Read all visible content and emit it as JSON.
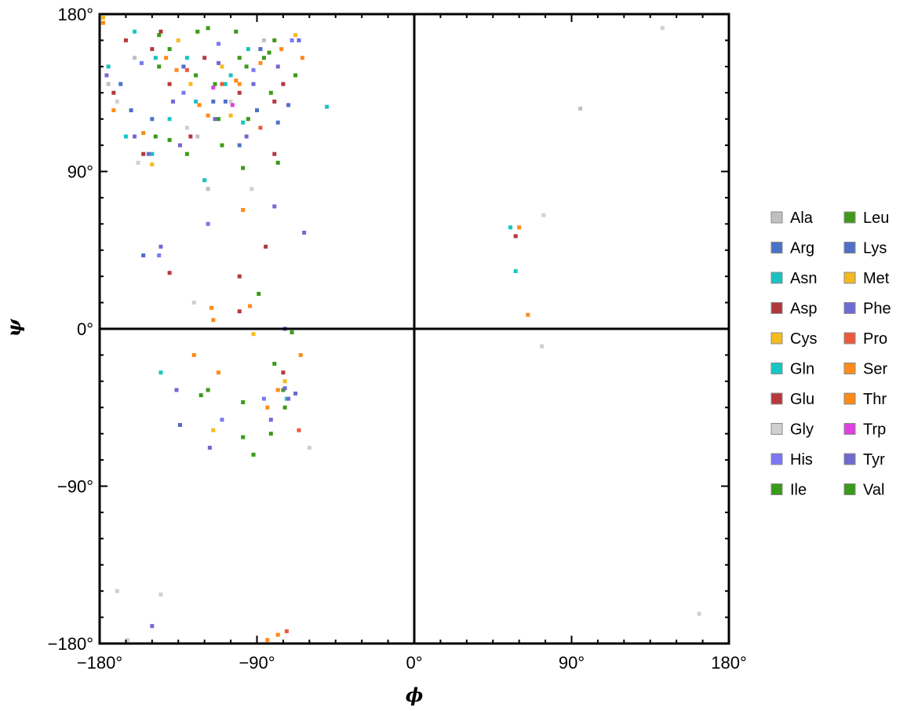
{
  "chart_data": {
    "type": "scatter",
    "xlabel": "ϕ",
    "ylabel": "ψ",
    "xlim": [
      -180,
      180
    ],
    "ylim": [
      -180,
      180
    ],
    "xticks": [
      {
        "value": -180,
        "label": "−180°"
      },
      {
        "value": -90,
        "label": "−90°"
      },
      {
        "value": 0,
        "label": "0°"
      },
      {
        "value": 90,
        "label": "90°"
      },
      {
        "value": 180,
        "label": "180°"
      }
    ],
    "yticks": [
      {
        "value": 180,
        "label": "180°"
      },
      {
        "value": 90,
        "label": "90°"
      },
      {
        "value": 0,
        "label": "0°"
      },
      {
        "value": -90,
        "label": "−90°"
      },
      {
        "value": -180,
        "label": "−180°"
      }
    ],
    "grid": false,
    "zero_lines": true,
    "legend_position": "right",
    "series": [
      {
        "name": "Ala",
        "color": "#c0c0c0",
        "points": [
          [
            -86,
            165
          ],
          [
            95,
            126
          ],
          [
            -118,
            80
          ],
          [
            -160,
            155
          ],
          [
            -175,
            140
          ],
          [
            -124,
            110
          ]
        ]
      },
      {
        "name": "Arg",
        "color": "#4a73c8",
        "points": [
          [
            -168,
            140
          ],
          [
            -150,
            120
          ],
          [
            -115,
            130
          ],
          [
            -100,
            105
          ],
          [
            -90,
            125
          ],
          [
            -78,
            118
          ]
        ]
      },
      {
        "name": "Asn",
        "color": "#19c2c0",
        "points": [
          [
            -175,
            150
          ],
          [
            -148,
            155
          ],
          [
            -125,
            130
          ],
          [
            -105,
            145
          ],
          [
            -95,
            160
          ],
          [
            -50,
            127
          ],
          [
            -150,
            100
          ],
          [
            -120,
            85
          ]
        ]
      },
      {
        "name": "Asp",
        "color": "#b0383c",
        "points": [
          [
            -172,
            135
          ],
          [
            -145,
            170
          ],
          [
            -128,
            110
          ],
          [
            -100,
            30
          ],
          [
            -85,
            47
          ],
          [
            -155,
            100
          ],
          [
            -80,
            100
          ],
          [
            -75,
            140
          ]
        ]
      },
      {
        "name": "Cys",
        "color": "#f5bc1c",
        "points": [
          [
            -135,
            165
          ],
          [
            -110,
            150
          ],
          [
            -92,
            -3
          ],
          [
            -115,
            -58
          ]
        ]
      },
      {
        "name": "Gln",
        "color": "#14c8c4",
        "points": [
          [
            -160,
            170
          ],
          [
            -130,
            155
          ],
          [
            -108,
            140
          ],
          [
            -98,
            118
          ],
          [
            -165,
            110
          ],
          [
            -140,
            120
          ],
          [
            -145,
            -25
          ],
          [
            -73,
            -40
          ],
          [
            55,
            58
          ],
          [
            58,
            33
          ]
        ]
      },
      {
        "name": "Glu",
        "color": "#b8383c",
        "points": [
          [
            -165,
            165
          ],
          [
            -150,
            160
          ],
          [
            -140,
            140
          ],
          [
            -120,
            155
          ],
          [
            -100,
            135
          ],
          [
            -80,
            130
          ],
          [
            -140,
            32
          ],
          [
            -100,
            10
          ],
          [
            -75,
            -25
          ],
          [
            58,
            53
          ]
        ]
      },
      {
        "name": "Gly",
        "color": "#d0d0d0",
        "points": [
          [
            -170,
            130
          ],
          [
            -158,
            95
          ],
          [
            -130,
            115
          ],
          [
            -105,
            130
          ],
          [
            -70,
            165
          ],
          [
            -60,
            -68
          ],
          [
            -170,
            -150
          ],
          [
            -145,
            -152
          ],
          [
            -164,
            -178
          ],
          [
            -126,
            15
          ],
          [
            73,
            -10
          ],
          [
            163,
            -163
          ],
          [
            142,
            172
          ],
          [
            74,
            65
          ],
          [
            -93,
            80
          ]
        ]
      },
      {
        "name": "His",
        "color": "#7a78f2",
        "points": [
          [
            -156,
            152
          ],
          [
            -132,
            135
          ],
          [
            -112,
            163
          ],
          [
            -92,
            148
          ],
          [
            -70,
            165
          ],
          [
            -146,
            42
          ],
          [
            -118,
            60
          ],
          [
            -110,
            -52
          ],
          [
            -86,
            -40
          ]
        ]
      },
      {
        "name": "Ile",
        "color": "#3a9a1a",
        "points": [
          [
            -146,
            168
          ],
          [
            -125,
            145
          ],
          [
            -102,
            170
          ],
          [
            -86,
            155
          ],
          [
            -78,
            95
          ],
          [
            -148,
            110
          ],
          [
            -110,
            105
          ],
          [
            -89,
            20
          ],
          [
            -75,
            -35
          ],
          [
            -70,
            -2
          ],
          [
            -92,
            -72
          ]
        ]
      },
      {
        "name": "Leu",
        "color": "#3d9a18",
        "points": [
          [
            -140,
            160
          ],
          [
            -118,
            172
          ],
          [
            -100,
            155
          ],
          [
            -82,
            135
          ],
          [
            -68,
            145
          ],
          [
            -130,
            100
          ],
          [
            -95,
            120
          ],
          [
            -80,
            -20
          ],
          [
            -118,
            -35
          ],
          [
            -98,
            -42
          ],
          [
            -82,
            -60
          ]
        ]
      },
      {
        "name": "Lys",
        "color": "#4f6fc8",
        "points": [
          [
            -162,
            125
          ],
          [
            -132,
            150
          ],
          [
            -108,
            130
          ],
          [
            -88,
            160
          ],
          [
            -72,
            128
          ],
          [
            -155,
            42
          ],
          [
            -74,
            0
          ],
          [
            -134,
            -55
          ]
        ]
      },
      {
        "name": "Met",
        "color": "#f5b91e",
        "points": [
          [
            -178,
            178
          ],
          [
            -150,
            94
          ],
          [
            -128,
            140
          ],
          [
            -105,
            122
          ],
          [
            -74,
            -30
          ],
          [
            -68,
            168
          ]
        ]
      },
      {
        "name": "Phe",
        "color": "#6f6ad6",
        "points": [
          [
            -176,
            145
          ],
          [
            -160,
            110
          ],
          [
            -138,
            130
          ],
          [
            -112,
            152
          ],
          [
            -92,
            140
          ],
          [
            -66,
            165
          ],
          [
            -136,
            -35
          ],
          [
            -82,
            -52
          ],
          [
            -72,
            -40
          ],
          [
            -80,
            70
          ],
          [
            -63,
            55
          ]
        ]
      },
      {
        "name": "Pro",
        "color": "#ec5a3c",
        "points": [
          [
            -130,
            148
          ],
          [
            -110,
            140
          ],
          [
            -88,
            115
          ],
          [
            -66,
            -58
          ],
          [
            -73,
            -173
          ]
        ]
      },
      {
        "name": "Ser",
        "color": "#ff8c1a",
        "points": [
          [
            -172,
            125
          ],
          [
            -155,
            112
          ],
          [
            -136,
            148
          ],
          [
            -118,
            122
          ],
          [
            -100,
            140
          ],
          [
            -88,
            152
          ],
          [
            -116,
            12
          ],
          [
            -94,
            13
          ],
          [
            -112,
            -25
          ],
          [
            -78,
            -35
          ],
          [
            -65,
            -15
          ],
          [
            60,
            58
          ],
          [
            65,
            8
          ],
          [
            -84,
            -178
          ]
        ]
      },
      {
        "name": "Thr",
        "color": "#ff8a14",
        "points": [
          [
            -178,
            175
          ],
          [
            -142,
            155
          ],
          [
            -123,
            128
          ],
          [
            -102,
            142
          ],
          [
            -76,
            160
          ],
          [
            -64,
            155
          ],
          [
            -98,
            68
          ],
          [
            -115,
            5
          ],
          [
            -126,
            -15
          ],
          [
            -84,
            -45
          ],
          [
            -78,
            -175
          ]
        ]
      },
      {
        "name": "Trp",
        "color": "#e040e0",
        "points": [
          [
            -104,
            128
          ],
          [
            -115,
            138
          ]
        ]
      },
      {
        "name": "Tyr",
        "color": "#6f6ad0",
        "points": [
          [
            -152,
            100
          ],
          [
            -134,
            105
          ],
          [
            -114,
            120
          ],
          [
            -96,
            110
          ],
          [
            -78,
            150
          ],
          [
            -74,
            -34
          ],
          [
            -145,
            47
          ],
          [
            -117,
            -68
          ],
          [
            -68,
            -37
          ],
          [
            -150,
            -170
          ]
        ]
      },
      {
        "name": "Val",
        "color": "#3a9a1a",
        "points": [
          [
            -146,
            150
          ],
          [
            -124,
            170
          ],
          [
            -114,
            140
          ],
          [
            -96,
            150
          ],
          [
            -80,
            165
          ],
          [
            -140,
            108
          ],
          [
            -112,
            120
          ],
          [
            -98,
            92
          ],
          [
            -83,
            158
          ],
          [
            -122,
            -38
          ],
          [
            -98,
            -62
          ],
          [
            -74,
            -45
          ]
        ]
      }
    ]
  }
}
